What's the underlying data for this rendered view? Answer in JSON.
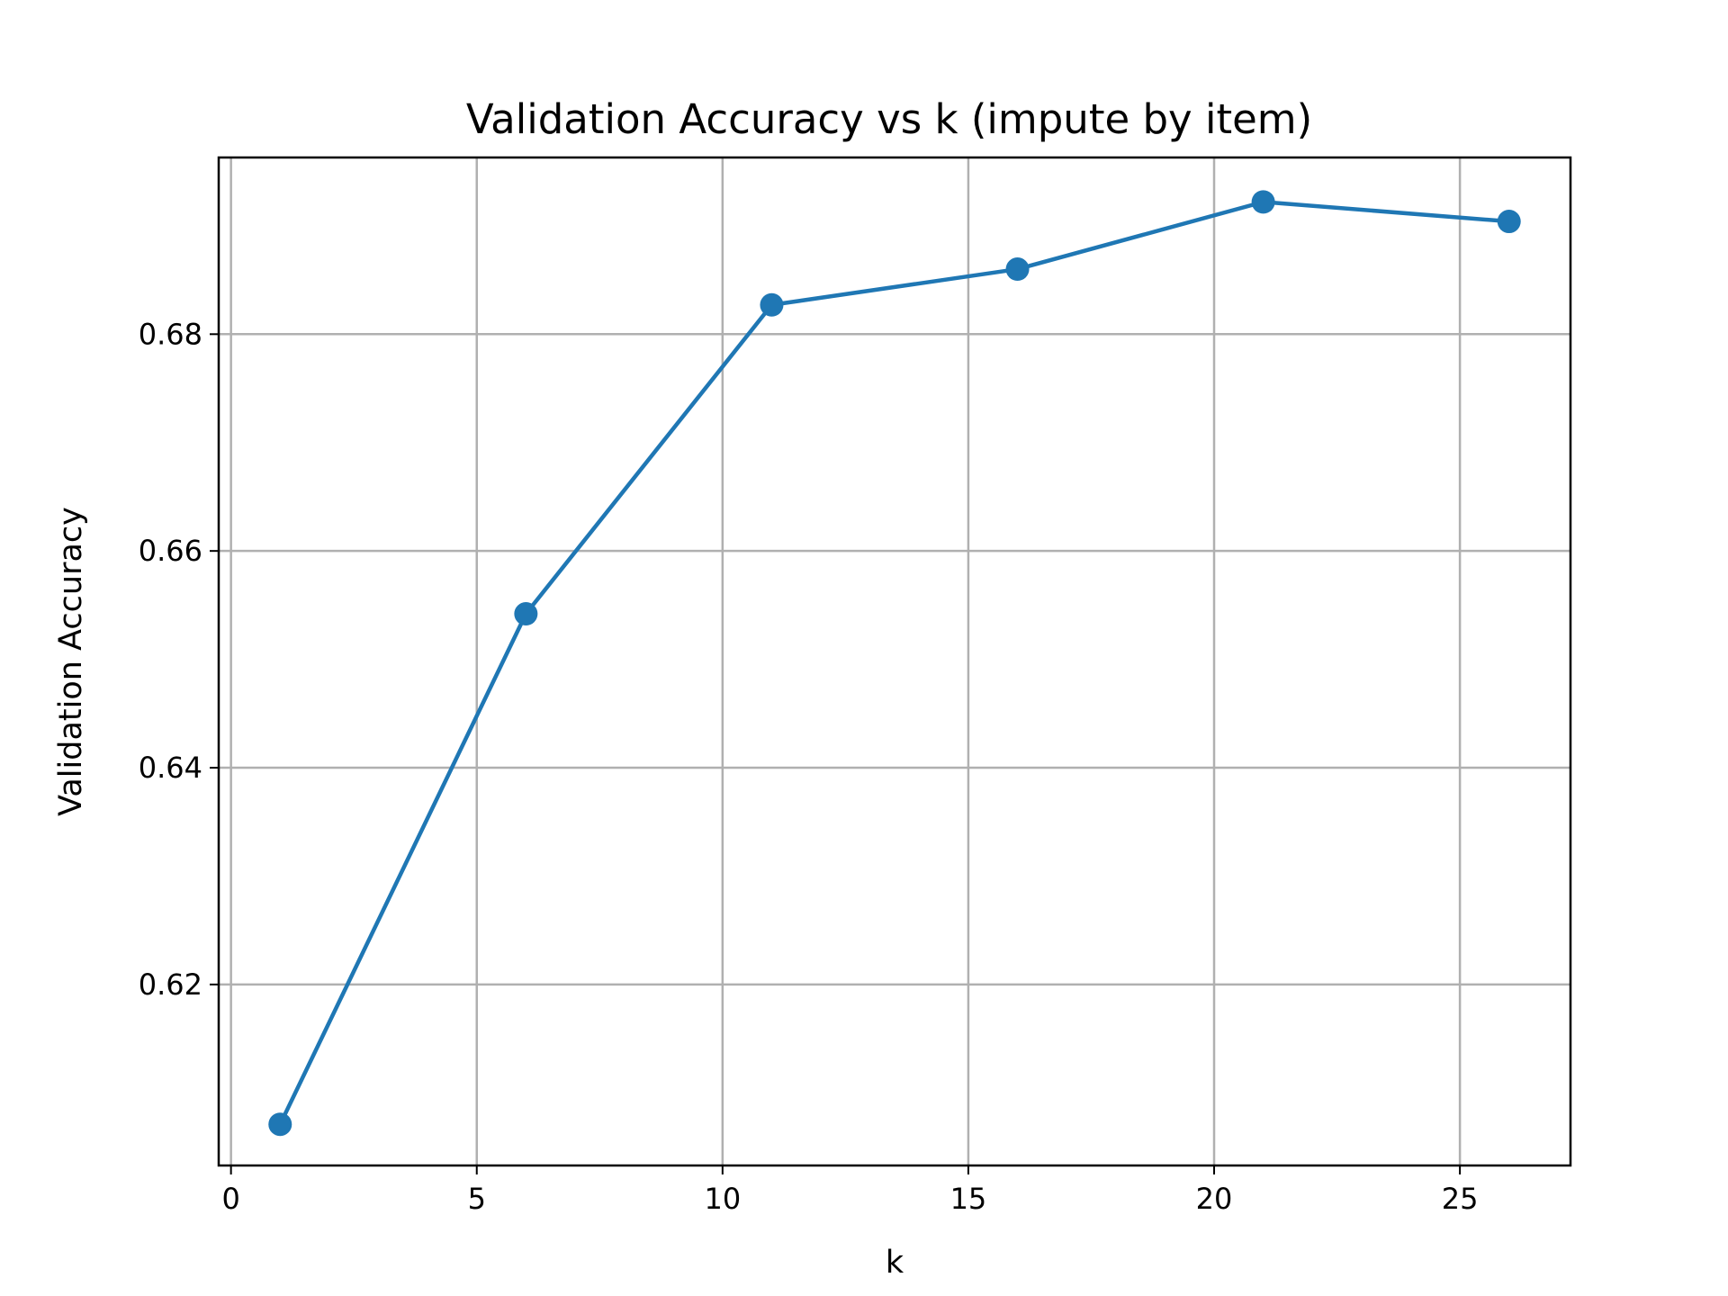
{
  "chart_data": {
    "type": "line",
    "title": "Validation Accuracy vs k (impute by item)",
    "xlabel": "k",
    "ylabel": "Validation Accuracy",
    "x": [
      1,
      6,
      11,
      16,
      21,
      26
    ],
    "series": [
      {
        "values": [
          0.6071,
          0.6542,
          0.6827,
          0.686,
          0.6922,
          0.6904
        ]
      }
    ],
    "xlim": [
      -0.25,
      27.25
    ],
    "ylim": [
      0.6033,
      0.6963
    ],
    "xticks": [
      0,
      5,
      10,
      15,
      20,
      25
    ],
    "xtick_labels": [
      "0",
      "5",
      "10",
      "15",
      "20",
      "25"
    ],
    "yticks": [
      0.62,
      0.64,
      0.66,
      0.68
    ],
    "ytick_labels": [
      "0.62",
      "0.64",
      "0.66",
      "0.68"
    ],
    "grid": true,
    "markers": true,
    "line_color": "#1f77b4"
  }
}
